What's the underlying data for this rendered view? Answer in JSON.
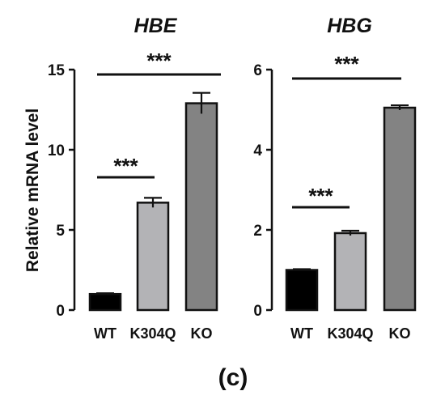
{
  "colors": {
    "WT": "#000000",
    "K304Q": "#b3b3b6",
    "KO": "#838383"
  },
  "chart_data": [
    {
      "type": "bar",
      "title": "HBE",
      "ylabel": "Relative mRNA level",
      "xlabel": "",
      "categories": [
        "WT",
        "K304Q",
        "KO"
      ],
      "values": [
        1.0,
        6.7,
        12.9
      ],
      "errors": [
        0.05,
        0.3,
        0.65
      ],
      "ylim": [
        0,
        15
      ],
      "yticks": [
        "0",
        "5",
        "10",
        "15"
      ],
      "significance": [
        {
          "from": "WT",
          "to": "K304Q",
          "label": "***"
        },
        {
          "from": "WT",
          "to": "KO",
          "label": "***"
        }
      ],
      "grid": false
    },
    {
      "type": "bar",
      "title": "HBG",
      "ylabel": "",
      "xlabel": "",
      "categories": [
        "WT",
        "K304Q",
        "KO"
      ],
      "values": [
        1.0,
        1.92,
        5.05
      ],
      "errors": [
        0.02,
        0.06,
        0.06
      ],
      "ylim": [
        0,
        6
      ],
      "yticks": [
        "0",
        "2",
        "4",
        "6"
      ],
      "significance": [
        {
          "from": "WT",
          "to": "K304Q",
          "label": "***"
        },
        {
          "from": "WT",
          "to": "KO",
          "label": "***"
        }
      ],
      "grid": false
    }
  ],
  "figure": {
    "panel_label": "(c)"
  }
}
